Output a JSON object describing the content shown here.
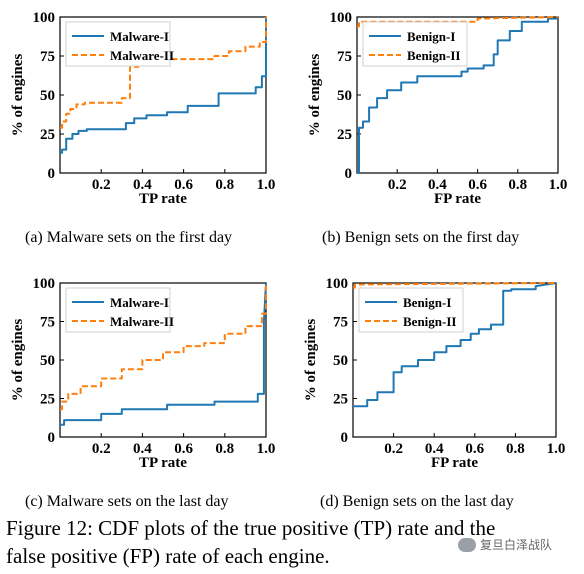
{
  "figure_caption": {
    "line1": "Figure 12: CDF plots of the true positive (TP) rate and the",
    "line2": "false positive (FP) rate of each engine."
  },
  "watermark": {
    "text": "复旦白泽战队",
    "icon": "wechat-icon"
  },
  "colors": {
    "blue": "#1f77b4",
    "orange": "#ff7f0e"
  },
  "chart_data": [
    {
      "type": "line",
      "subcaption": "(a)  Malware sets on the first day",
      "xlabel": "TP rate",
      "ylabel": "% of engines",
      "xlim": [
        0,
        1
      ],
      "ylim": [
        0,
        100
      ],
      "xticks": [
        "0.2",
        "0.4",
        "0.6",
        "0.8",
        "1.0"
      ],
      "yticks": [
        "0",
        "25",
        "50",
        "75",
        "100"
      ],
      "legend_position": "top-left",
      "series": [
        {
          "name": "Malware-I",
          "color": "#1f77b4",
          "style": "solid",
          "x": [
            0,
            0.01,
            0.01,
            0.03,
            0.03,
            0.06,
            0.06,
            0.09,
            0.09,
            0.13,
            0.13,
            0.32,
            0.32,
            0.36,
            0.36,
            0.42,
            0.42,
            0.52,
            0.52,
            0.62,
            0.62,
            0.77,
            0.77,
            0.95,
            0.95,
            0.98,
            0.98,
            1.0,
            1.0
          ],
          "y": [
            13,
            13,
            15,
            15,
            22,
            22,
            25,
            25,
            27,
            27,
            28,
            28,
            32,
            32,
            35,
            35,
            37,
            37,
            39,
            39,
            43,
            43,
            51,
            51,
            55,
            55,
            62,
            62,
            100
          ]
        },
        {
          "name": "Malware-II",
          "color": "#ff7f0e",
          "style": "dashed",
          "x": [
            0,
            0.01,
            0.01,
            0.03,
            0.03,
            0.05,
            0.05,
            0.08,
            0.08,
            0.12,
            0.12,
            0.3,
            0.3,
            0.34,
            0.34,
            0.38,
            0.38,
            0.45,
            0.45,
            0.75,
            0.75,
            0.82,
            0.82,
            0.9,
            0.9,
            0.97,
            0.97,
            1.0,
            1.0
          ],
          "y": [
            29,
            29,
            33,
            33,
            38,
            38,
            41,
            41,
            44,
            44,
            45,
            45,
            48,
            48,
            68,
            68,
            70,
            70,
            73,
            73,
            75,
            75,
            78,
            78,
            81,
            81,
            84,
            84,
            100
          ]
        }
      ]
    },
    {
      "type": "line",
      "subcaption": "(b)  Benign sets on the first day",
      "xlabel": "FP rate",
      "ylabel": "% of engines",
      "xlim": [
        0,
        1
      ],
      "ylim": [
        0,
        100
      ],
      "xticks": [
        "0.2",
        "0.4",
        "0.6",
        "0.8",
        "1.0"
      ],
      "yticks": [
        "0",
        "25",
        "50",
        "75",
        "100"
      ],
      "legend_position": "top-left",
      "series": [
        {
          "name": "Benign-I",
          "color": "#1f77b4",
          "style": "solid",
          "x": [
            0,
            0.01,
            0.01,
            0.03,
            0.03,
            0.06,
            0.06,
            0.1,
            0.1,
            0.15,
            0.15,
            0.22,
            0.22,
            0.3,
            0.3,
            0.52,
            0.52,
            0.55,
            0.55,
            0.63,
            0.63,
            0.68,
            0.68,
            0.7,
            0.7,
            0.76,
            0.76,
            0.82,
            0.82,
            0.95,
            0.95,
            1.0
          ],
          "y": [
            0,
            0,
            29,
            29,
            33,
            33,
            42,
            42,
            48,
            48,
            53,
            53,
            58,
            58,
            62,
            62,
            65,
            65,
            67,
            67,
            69,
            69,
            76,
            76,
            85,
            85,
            91,
            91,
            97,
            97,
            99,
            99
          ]
        },
        {
          "name": "Benign-II",
          "color": "#ff7f0e",
          "style": "dashed",
          "x": [
            0,
            0.01,
            0.01,
            0.6,
            0.6,
            1.0
          ],
          "y": [
            94,
            94,
            97,
            97,
            99,
            100
          ]
        }
      ]
    },
    {
      "type": "line",
      "subcaption": "(c)  Malware sets on the last day",
      "xlabel": "TP rate",
      "ylabel": "% of engines",
      "xlim": [
        0,
        1
      ],
      "ylim": [
        0,
        100
      ],
      "xticks": [
        "0.2",
        "0.4",
        "0.6",
        "0.8",
        "1.0"
      ],
      "yticks": [
        "0",
        "25",
        "50",
        "75",
        "100"
      ],
      "legend_position": "top-left",
      "series": [
        {
          "name": "Malware-I",
          "color": "#1f77b4",
          "style": "solid",
          "x": [
            0,
            0.02,
            0.02,
            0.2,
            0.2,
            0.3,
            0.3,
            0.52,
            0.52,
            0.75,
            0.75,
            0.96,
            0.96,
            0.99,
            0.99,
            1.0
          ],
          "y": [
            8,
            8,
            11,
            11,
            15,
            15,
            18,
            18,
            21,
            21,
            23,
            23,
            28,
            28,
            75,
            100
          ]
        },
        {
          "name": "Malware-II",
          "color": "#ff7f0e",
          "style": "dashed",
          "x": [
            0,
            0.01,
            0.01,
            0.04,
            0.04,
            0.1,
            0.1,
            0.2,
            0.2,
            0.3,
            0.3,
            0.4,
            0.4,
            0.5,
            0.5,
            0.6,
            0.6,
            0.7,
            0.7,
            0.8,
            0.8,
            0.9,
            0.9,
            0.98,
            0.98,
            1.0,
            1.0
          ],
          "y": [
            18,
            18,
            23,
            23,
            28,
            28,
            33,
            33,
            38,
            38,
            44,
            44,
            50,
            50,
            55,
            55,
            59,
            59,
            61,
            61,
            67,
            67,
            72,
            72,
            80,
            80,
            100
          ]
        }
      ]
    },
    {
      "type": "line",
      "subcaption": "(d)  Benign sets on the last day",
      "xlabel": "FP rate",
      "ylabel": "% of engines",
      "xlim": [
        0,
        1
      ],
      "ylim": [
        0,
        100
      ],
      "xticks": [
        "0.2",
        "0.4",
        "0.6",
        "0.8",
        "1.0"
      ],
      "yticks": [
        "0",
        "25",
        "50",
        "75",
        "100"
      ],
      "legend_position": "top-left",
      "series": [
        {
          "name": "Benign-I",
          "color": "#1f77b4",
          "style": "solid",
          "x": [
            0,
            0.07,
            0.07,
            0.12,
            0.12,
            0.2,
            0.2,
            0.24,
            0.24,
            0.32,
            0.32,
            0.4,
            0.4,
            0.46,
            0.46,
            0.53,
            0.53,
            0.58,
            0.58,
            0.62,
            0.62,
            0.68,
            0.68,
            0.74,
            0.74,
            0.78,
            0.78,
            0.9,
            0.9,
            1.0
          ],
          "y": [
            20,
            20,
            24,
            24,
            29,
            29,
            42,
            42,
            46,
            46,
            50,
            50,
            55,
            55,
            59,
            59,
            63,
            63,
            67,
            67,
            70,
            70,
            73,
            73,
            95,
            95,
            96,
            96,
            98,
            100
          ]
        },
        {
          "name": "Benign-II",
          "color": "#ff7f0e",
          "style": "dashed",
          "x": [
            0,
            0.01,
            0.01,
            1.0
          ],
          "y": [
            97,
            97,
            99,
            100
          ]
        }
      ]
    }
  ]
}
